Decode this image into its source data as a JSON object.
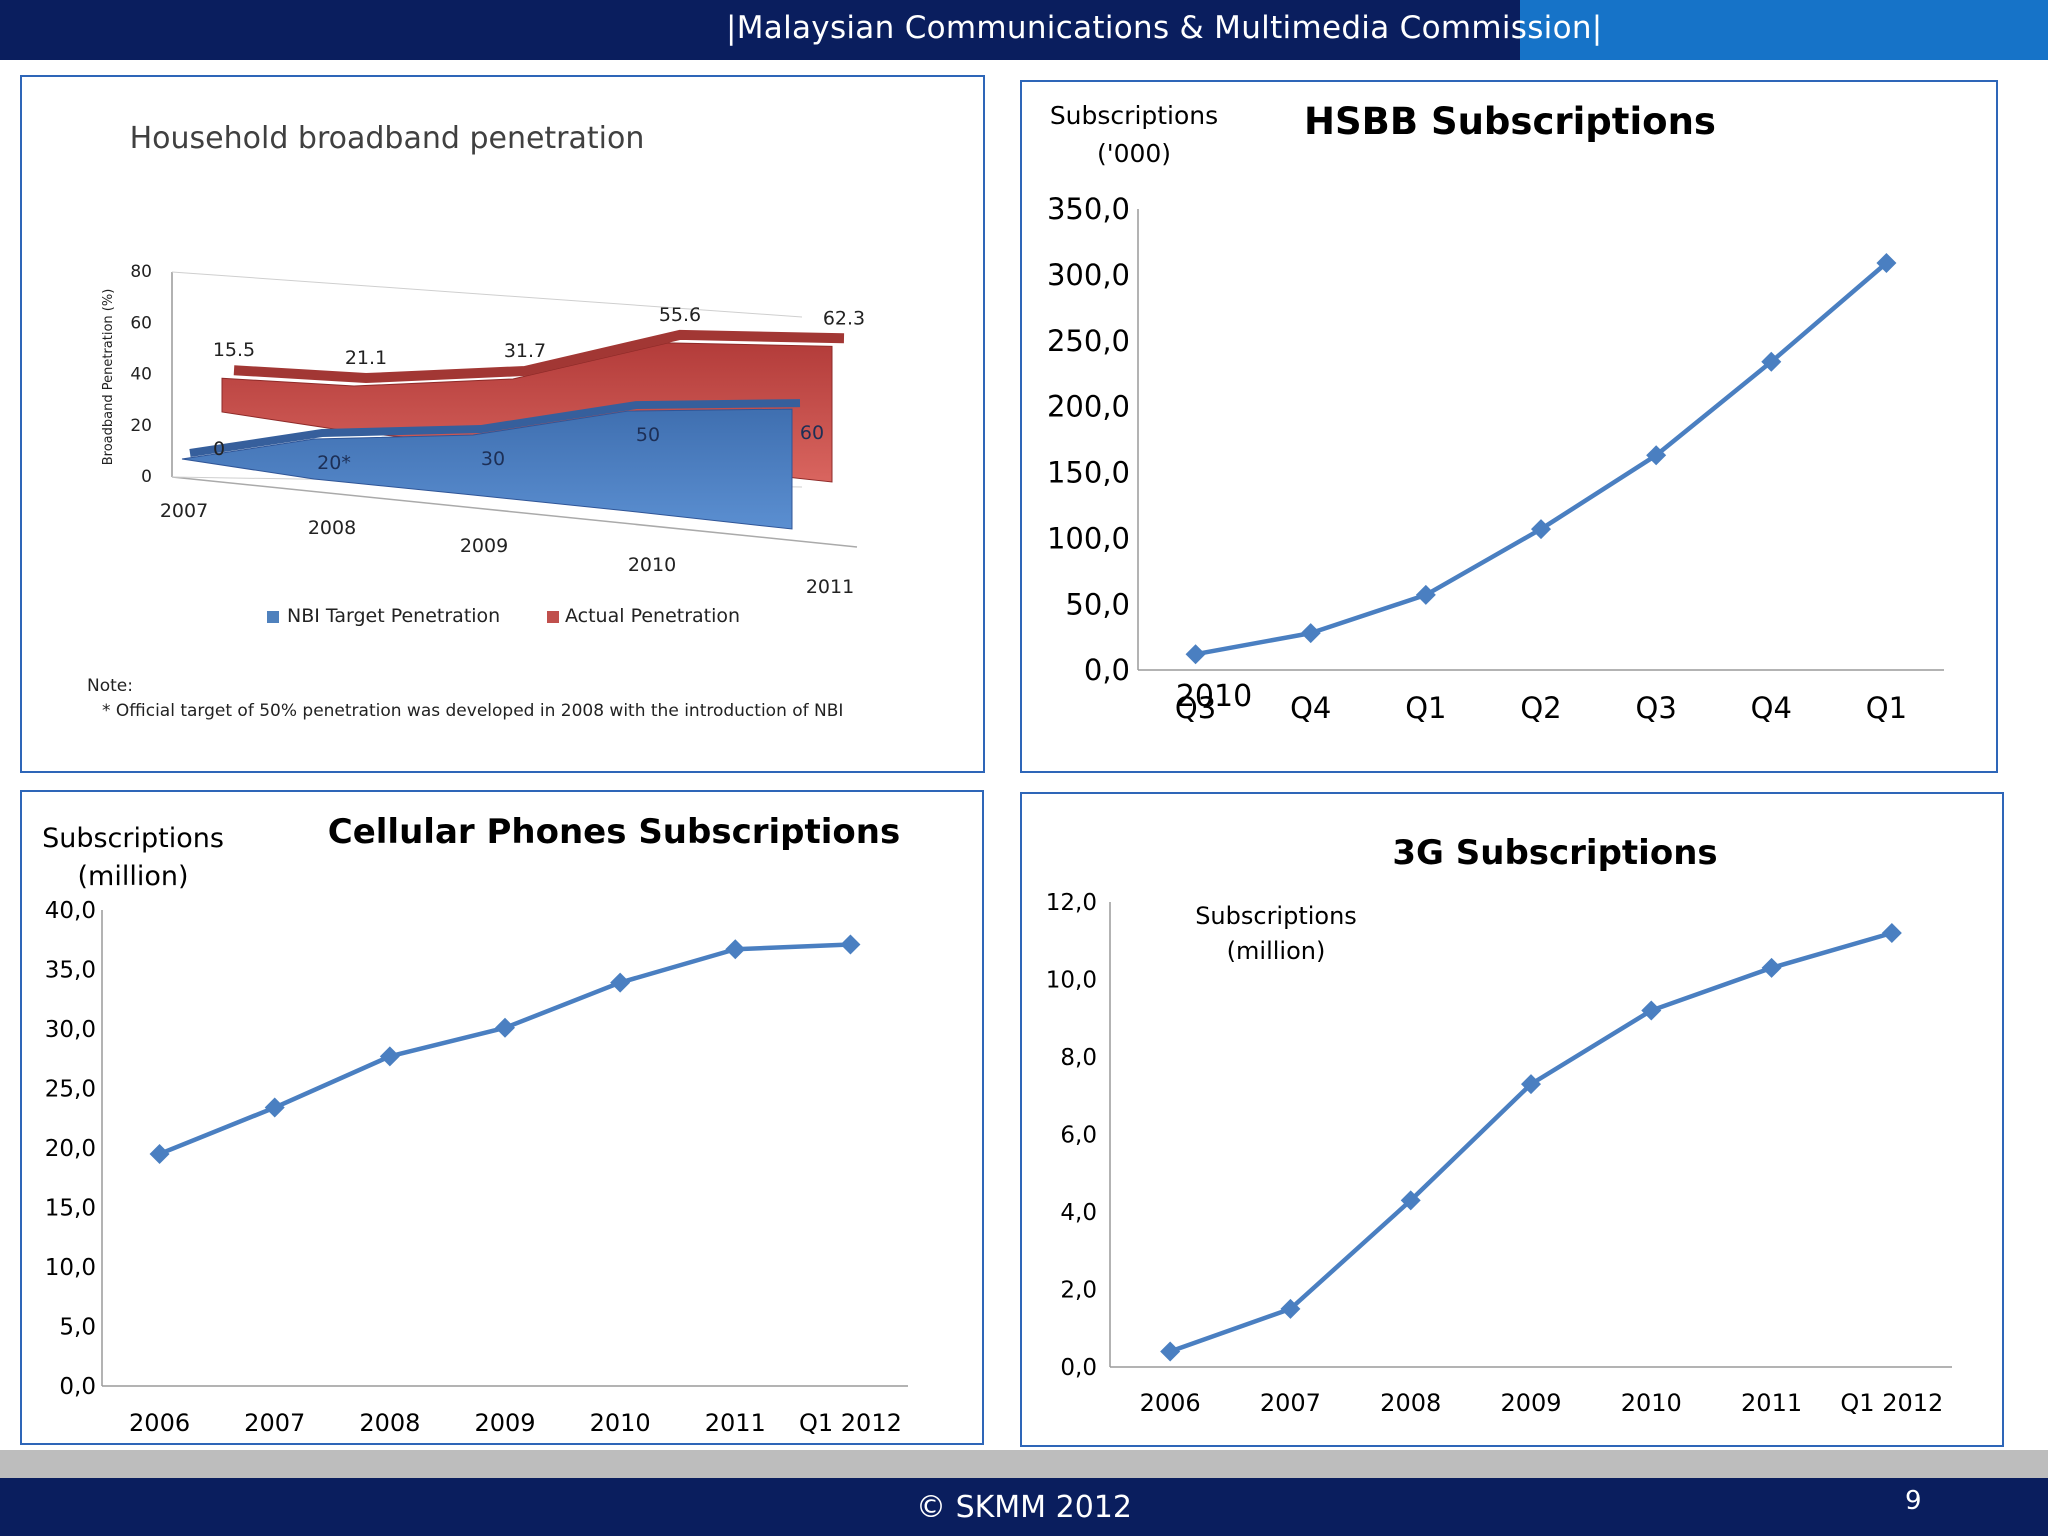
{
  "header": {
    "title": "|Malaysian Communications & Multimedia Commission|"
  },
  "footer": {
    "copyright": "© SKMM 2012",
    "page_number": "9"
  },
  "colors": {
    "navy": "#0a1e5e",
    "accent_blue": "#1673c8",
    "line": "#4a7fc1",
    "marker": "#4a7fc1",
    "nbi_blue": "#4f81bd",
    "actual_red": "#c0504d"
  },
  "chart_data": [
    {
      "id": "broadband",
      "type": "area",
      "title": "Household broadband penetration",
      "ylabel": "Broadband Penetration (%)",
      "ylim": [
        0,
        80
      ],
      "yticks": [
        "80",
        "60",
        "40",
        "20",
        "0"
      ],
      "categories": [
        "2007",
        "2008",
        "2009",
        "2010",
        "2011"
      ],
      "series": [
        {
          "name": "NBI Target Penetration",
          "values": [
            0,
            20,
            30,
            50,
            60
          ],
          "labels": [
            "0",
            "20*",
            "30",
            "50",
            "60"
          ]
        },
        {
          "name": "Actual Penetration",
          "values": [
            15.5,
            21.1,
            31.7,
            55.6,
            62.3
          ],
          "labels": [
            "15.5",
            "21.1",
            "31.7",
            "55.6",
            "62.3"
          ]
        }
      ],
      "legend": "bottom",
      "note_title": "Note:",
      "note_text": "* Official target of 50% penetration was developed in 2008 with the introduction of NBI"
    },
    {
      "id": "hsbb",
      "type": "line",
      "title": "HSBB Subscriptions",
      "ylabel": "Subscriptions ('000)",
      "ylim": [
        0,
        350
      ],
      "yticks": [
        "0,0",
        "50,0",
        "100,0",
        "150,0",
        "200,0",
        "250,0",
        "300,0",
        "350,0"
      ],
      "categories": [
        "Q3",
        "Q4",
        "Q1",
        "Q2",
        "Q3",
        "Q4",
        "Q1"
      ],
      "year_annotation": "2010",
      "values": [
        12,
        28,
        57,
        107,
        163,
        234,
        309
      ]
    },
    {
      "id": "cellular",
      "type": "line",
      "title": "Cellular Phones Subscriptions",
      "ylabel": "Subscriptions (million)",
      "ylim": [
        0,
        40
      ],
      "yticks": [
        "0,0",
        "5,0",
        "10,0",
        "15,0",
        "20,0",
        "25,0",
        "30,0",
        "35,0",
        "40,0"
      ],
      "categories": [
        "2006",
        "2007",
        "2008",
        "2009",
        "2010",
        "2011",
        "Q1 2012"
      ],
      "values": [
        19.5,
        23.4,
        27.7,
        30.1,
        33.9,
        36.7,
        37.1
      ]
    },
    {
      "id": "threeg",
      "type": "line",
      "title": "3G Subscriptions",
      "ylabel": "Subscriptions (million)",
      "ylim": [
        0,
        12
      ],
      "yticks": [
        "0,0",
        "2,0",
        "4,0",
        "6,0",
        "8,0",
        "10,0",
        "12,0"
      ],
      "categories": [
        "2006",
        "2007",
        "2008",
        "2009",
        "2010",
        "2011",
        "Q1 2012"
      ],
      "values": [
        0.4,
        1.5,
        4.3,
        7.3,
        9.2,
        10.3,
        11.2
      ]
    }
  ]
}
